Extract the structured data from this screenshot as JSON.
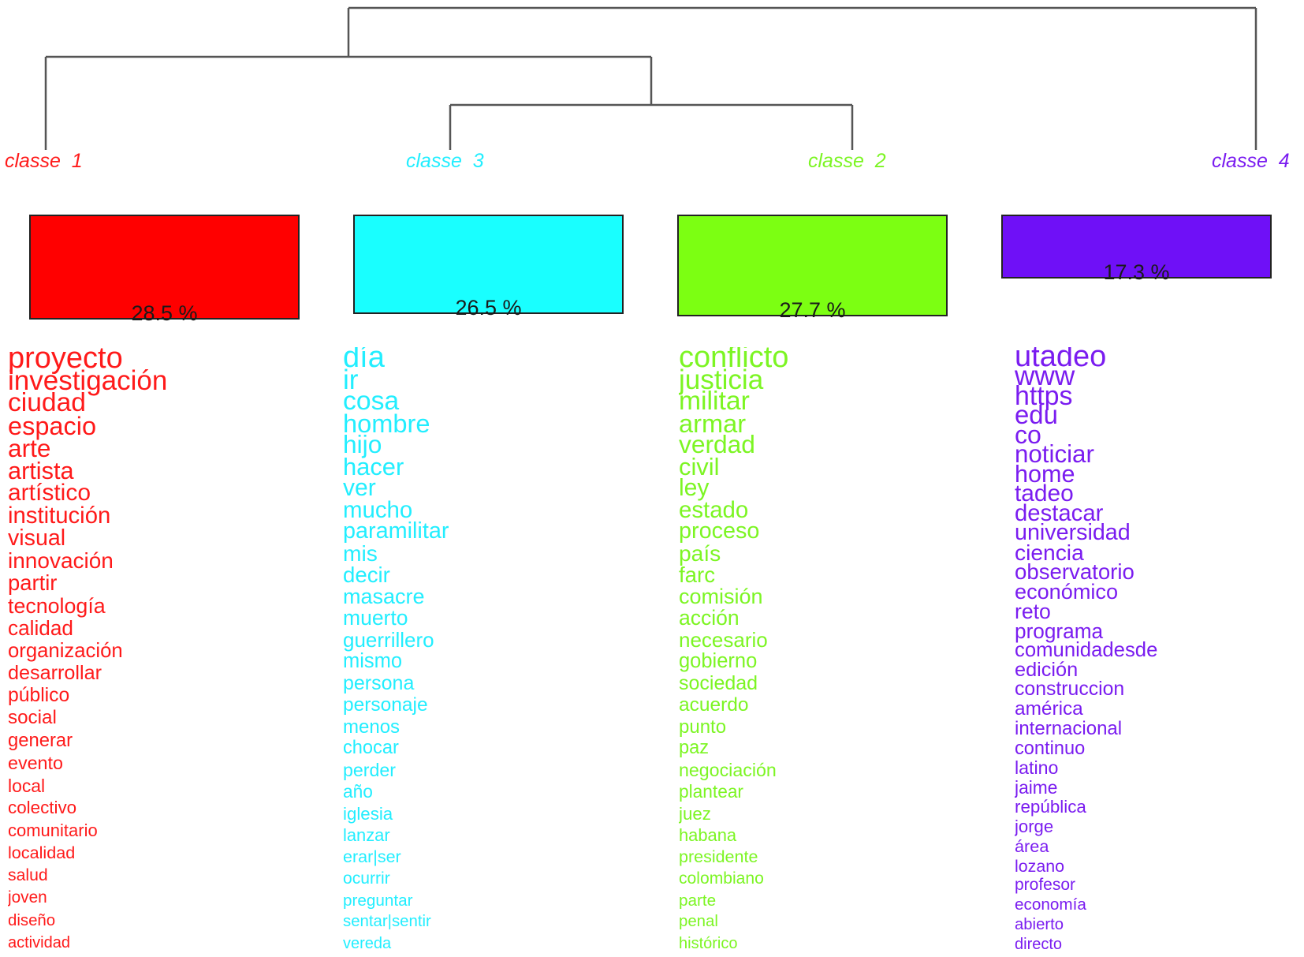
{
  "chart_data": {
    "type": "dendrogram",
    "classes": [
      {
        "id": "class1",
        "label": "classe  1",
        "color": "#ff1a1a",
        "box_color": "#ff0000",
        "percent": "28.5 %",
        "percent_value": 28.5,
        "words": [
          "proyecto",
          "investigación",
          "ciudad",
          "espacio",
          "arte",
          "artista",
          "artístico",
          "institución",
          "visual",
          "innovación",
          "partir",
          "tecnología",
          "calidad",
          "organización",
          "desarrollar",
          "público",
          "social",
          "generar",
          "evento",
          "local",
          "colectivo",
          "comunitario",
          "localidad",
          "salud",
          "joven",
          "diseño",
          "actividad"
        ]
      },
      {
        "id": "class3",
        "label": "classe  3",
        "color": "#22eeff",
        "box_color": "#19ffff",
        "percent": "26.5 %",
        "percent_value": 26.5,
        "words": [
          "día",
          "ir",
          "cosa",
          "hombre",
          "hijo",
          "hacer",
          "ver",
          "mucho",
          "paramilitar",
          "mis",
          "decir",
          "masacre",
          "muerto",
          "guerrillero",
          "mismo",
          "persona",
          "personaje",
          "menos",
          "chocar",
          "perder",
          "año",
          "iglesia",
          "lanzar",
          "erar|ser",
          "ocurrir",
          "preguntar",
          "sentar|sentir",
          "vereda"
        ]
      },
      {
        "id": "class2",
        "label": "classe  2",
        "color": "#7cf523",
        "box_color": "#7cff12",
        "percent": "27.7 %",
        "percent_value": 27.7,
        "words": [
          "conflicto",
          "justicia",
          "militar",
          "armar",
          "verdad",
          "civil",
          "ley",
          "estado",
          "proceso",
          "país",
          "farc",
          "comisión",
          "acción",
          "necesario",
          "gobierno",
          "sociedad",
          "acuerdo",
          "punto",
          "paz",
          "negociación",
          "plantear",
          "juez",
          "habana",
          "presidente",
          "colombiano",
          "parte",
          "penal",
          "histórico"
        ]
      },
      {
        "id": "class4",
        "label": "classe  4",
        "color": "#7a1cf0",
        "box_color": "#6f10f7",
        "percent": "17.3 %",
        "percent_value": 17.3,
        "words": [
          "utadeo",
          "www",
          "https",
          "edu",
          "co",
          "noticiar",
          "home",
          "tadeo",
          "destacar",
          "universidad",
          "ciencia",
          "observatorio",
          "económico",
          "reto",
          "programa",
          "comunidadesde",
          "edición",
          "construccion",
          "américa",
          "internacional",
          "continuo",
          "latino",
          "jaime",
          "república",
          "jorge",
          "área",
          "lozano",
          "profesor",
          "economía",
          "abierto",
          "directo"
        ]
      }
    ],
    "tree": "((classe 1, (classe 3, classe 2)), classe 4)"
  }
}
